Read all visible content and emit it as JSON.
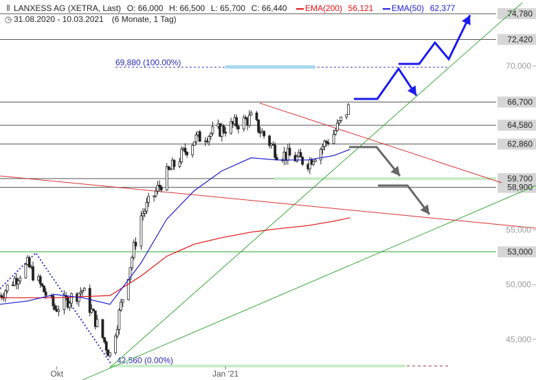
{
  "header": {
    "icon": "candlestick-icon",
    "name": "LANXESS AG (XETRA, Last)",
    "open": "O: 66,000",
    "high": "H: 66,500",
    "low": "L: 65,700",
    "close": "C: 66,440",
    "ema200_label": "EMA(200)",
    "ema200_value": "56,121",
    "ema50_label": "EMA(50)",
    "ema50_value": "62,377",
    "clock_icon": "clock-icon",
    "range": "31.08.2020 - 10.03.2021",
    "period": "(6 Monate, 1 Tag)"
  },
  "colors": {
    "ema200": "#e01010",
    "ema50": "#1a1ad0",
    "trend_green": "#3aa83a",
    "trend_red": "#d83030",
    "arrow_blue": "#1a1af0",
    "arrow_gray": "#666666",
    "level_box": "#222222"
  },
  "chart_data": {
    "type": "candlestick",
    "y_range": [
      42000,
      75400
    ],
    "y_ticks": [
      {
        "value": 45000,
        "label": "45,000"
      },
      {
        "value": 50000,
        "label": "50,000"
      },
      {
        "value": 55000,
        "label": "55,000"
      },
      {
        "value": 70000,
        "label": "70,000"
      }
    ],
    "x_range": [
      "2020-08-31",
      "2021-03-31"
    ],
    "x_ticks": [
      {
        "date": "2020-10-01",
        "label": "Okt"
      },
      {
        "date": "2021-01-01",
        "label": "Jan '21"
      }
    ],
    "levels": [
      {
        "value": 74780,
        "label": "74,780"
      },
      {
        "value": 72420,
        "label": "72,420"
      },
      {
        "value": 66700,
        "label": "66,700"
      },
      {
        "value": 64580,
        "label": "64,580"
      },
      {
        "value": 62860,
        "label": "62,860"
      },
      {
        "value": 59700,
        "label": "59,700"
      },
      {
        "value": 58900,
        "label": "58,900"
      },
      {
        "value": 53000,
        "label": "53,000"
      }
    ],
    "fibonacci": [
      {
        "value": 69880,
        "label": "69,880 (100.00%)"
      },
      {
        "value": 42560,
        "label": "42,560 (0.00%)"
      }
    ],
    "monthly_closes": [
      {
        "date": "2020-08-31",
        "close": 49000
      },
      {
        "date": "2020-09-15",
        "close": 51800
      },
      {
        "date": "2020-09-30",
        "close": 47800
      },
      {
        "date": "2020-10-15",
        "close": 49500
      },
      {
        "date": "2020-10-30",
        "close": 43600
      },
      {
        "date": "2020-11-16",
        "close": 56300
      },
      {
        "date": "2020-11-30",
        "close": 60100
      },
      {
        "date": "2020-12-15",
        "close": 63300
      },
      {
        "date": "2020-12-30",
        "close": 64200
      },
      {
        "date": "2021-01-15",
        "close": 65200
      },
      {
        "date": "2021-01-29",
        "close": 62100
      },
      {
        "date": "2021-02-15",
        "close": 61200
      },
      {
        "date": "2021-03-01",
        "close": 63800
      },
      {
        "date": "2021-03-10",
        "close": 66440
      }
    ],
    "series": [
      {
        "name": "EMA(200)",
        "values": [
          48800,
          48800,
          48800,
          48900,
          49000,
          50800,
          52600,
          53700,
          54300,
          54800,
          55100,
          55400,
          55800,
          56121
        ]
      },
      {
        "name": "EMA(50)",
        "values": [
          48200,
          48500,
          49100,
          48800,
          48200,
          52000,
          56000,
          58600,
          60400,
          61600,
          61400,
          61400,
          61800,
          62377
        ]
      }
    ]
  }
}
